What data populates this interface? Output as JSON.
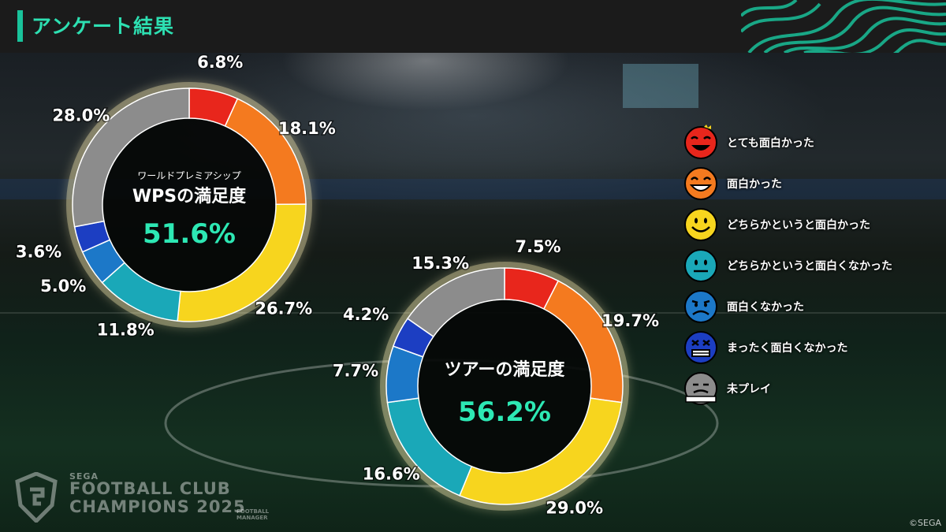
{
  "header": {
    "title": "アンケート結果"
  },
  "legend": [
    {
      "label": "とても面白かった",
      "icon": "very-happy-face-icon",
      "color": "#e8261c"
    },
    {
      "label": "面白かった",
      "icon": "laughing-face-icon",
      "color": "#f47a1f"
    },
    {
      "label": "どちらかというと面白かった",
      "icon": "smiling-face-icon",
      "color": "#f7d51e"
    },
    {
      "label": "どちらかというと面白くなかった",
      "icon": "neutral-face-icon",
      "color": "#1aa8b8"
    },
    {
      "label": "面白くなかった",
      "icon": "frowning-face-icon",
      "color": "#1c78c8"
    },
    {
      "label": "まったく面白くなかった",
      "icon": "angry-face-icon",
      "color": "#1c3ec2"
    },
    {
      "label": "未プレイ",
      "icon": "bandaged-face-icon",
      "color": "#8c8c8c"
    }
  ],
  "chart_data": [
    {
      "type": "pie",
      "subtitle": "ワールドプレミアシップ",
      "title": "WPSの満足度",
      "center_value": "51.6%",
      "categories": [
        "とても面白かった",
        "面白かった",
        "どちらかというと面白かった",
        "どちらかというと面白くなかった",
        "面白くなかった",
        "まったく面白くなかった",
        "未プレイ"
      ],
      "values": [
        6.8,
        18.1,
        26.7,
        11.8,
        5.0,
        3.6,
        28.0
      ],
      "labels": [
        "6.8%",
        "18.1%",
        "26.7%",
        "11.8%",
        "5.0%",
        "3.6%",
        "28.0%"
      ]
    },
    {
      "type": "pie",
      "subtitle": "",
      "title": "ツアーの満足度",
      "center_value": "56.2%",
      "categories": [
        "とても面白かった",
        "面白かった",
        "どちらかというと面白かった",
        "どちらかというと面白くなかった",
        "面白くなかった",
        "まったく面白くなかった",
        "未プレイ"
      ],
      "values": [
        7.5,
        19.7,
        29.0,
        16.6,
        7.7,
        4.2,
        15.3
      ],
      "labels": [
        "7.5%",
        "19.7%",
        "29.0%",
        "16.6%",
        "7.7%",
        "4.2%",
        "15.3%"
      ]
    }
  ],
  "brand": {
    "maker": "SEGA",
    "line1": "FOOTBALL CLUB",
    "line2": "CHAMPIONS 2025",
    "subline": "FOOTBALL MANAGER"
  },
  "copyright": "©SEGA"
}
